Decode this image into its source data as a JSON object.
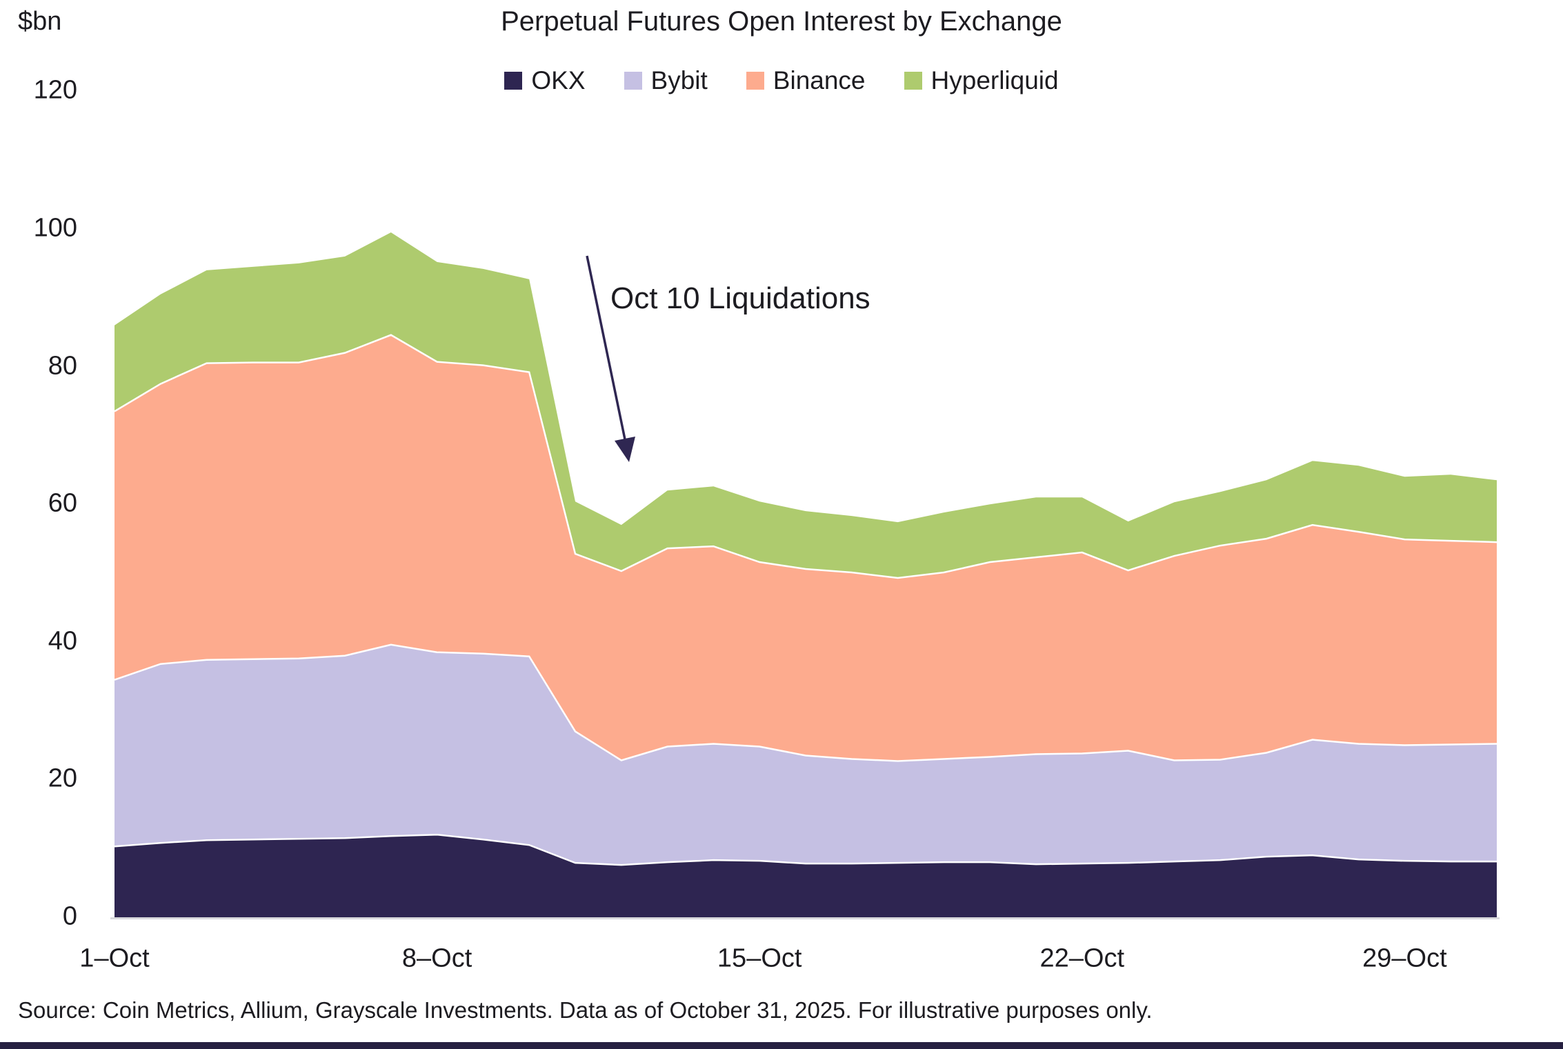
{
  "header": {
    "y_axis_unit": "$bn",
    "title": "Perpetual Futures Open Interest by Exchange"
  },
  "annotation": {
    "text": "Oct 10 Liquidations"
  },
  "source": "Source: Coin Metrics, Allium, Grayscale Investments. Data as of October 31, 2025. For illustrative purposes only.",
  "colors": {
    "arrow": "#2f2752",
    "bottom_bar": "#262041",
    "baseline": "#d9d9dc",
    "text": "#1d1c21"
  },
  "chart_data": {
    "type": "area",
    "stacked": true,
    "title": "Perpetual Futures Open Interest by Exchange",
    "ylabel": "$bn",
    "ylim": [
      0,
      120
    ],
    "grid": false,
    "legend_position": "top",
    "y_ticks": [
      0,
      20,
      40,
      60,
      80,
      100,
      120
    ],
    "x_days": [
      1,
      2,
      3,
      4,
      5,
      6,
      7,
      8,
      9,
      10,
      11,
      12,
      13,
      14,
      15,
      16,
      17,
      18,
      19,
      20,
      21,
      22,
      23,
      24,
      25,
      26,
      27,
      28,
      29,
      30,
      31
    ],
    "x_tick_days": [
      1,
      8,
      15,
      22,
      29
    ],
    "x_tick_labels": [
      "1–Oct",
      "8–Oct",
      "15–Oct",
      "22–Oct",
      "29–Oct"
    ],
    "series": [
      {
        "name": "OKX",
        "color": "#2e2551",
        "values": [
          10.3,
          10.8,
          11.2,
          11.3,
          11.4,
          11.5,
          11.8,
          12.0,
          11.3,
          10.5,
          7.9,
          7.6,
          8.0,
          8.3,
          8.2,
          7.8,
          7.8,
          7.9,
          8.0,
          8.0,
          7.7,
          7.8,
          7.9,
          8.1,
          8.3,
          8.8,
          9.0,
          8.4,
          8.2,
          8.1,
          8.1
        ]
      },
      {
        "name": "Bybit",
        "color": "#c5c0e3",
        "values": [
          24.2,
          26.0,
          26.2,
          26.2,
          26.2,
          26.5,
          27.8,
          26.5,
          27.0,
          27.4,
          19.1,
          15.2,
          16.8,
          16.9,
          16.6,
          15.7,
          15.2,
          14.8,
          15.0,
          15.3,
          16.0,
          16.0,
          16.3,
          14.7,
          14.6,
          15.1,
          16.8,
          16.8,
          16.8,
          17.0,
          17.1
        ]
      },
      {
        "name": "Binance",
        "color": "#fdab8e",
        "values": [
          39.0,
          40.7,
          43.1,
          43.1,
          43.0,
          44.0,
          45.0,
          42.2,
          41.9,
          41.3,
          25.8,
          27.5,
          28.8,
          28.7,
          26.8,
          27.1,
          27.1,
          26.6,
          27.1,
          28.3,
          28.6,
          29.2,
          26.2,
          29.7,
          31.1,
          31.1,
          31.2,
          30.8,
          29.9,
          29.6,
          29.3
        ]
      },
      {
        "name": "Hyperliquid",
        "color": "#aecb6e",
        "values": [
          12.5,
          13.0,
          13.5,
          13.9,
          14.4,
          14.0,
          14.9,
          14.5,
          14.0,
          13.5,
          7.6,
          6.7,
          8.4,
          8.7,
          8.8,
          8.4,
          8.2,
          8.1,
          8.7,
          8.4,
          8.7,
          8.0,
          7.1,
          7.8,
          7.8,
          8.5,
          9.3,
          9.6,
          9.1,
          9.6,
          9.0
        ]
      }
    ]
  }
}
